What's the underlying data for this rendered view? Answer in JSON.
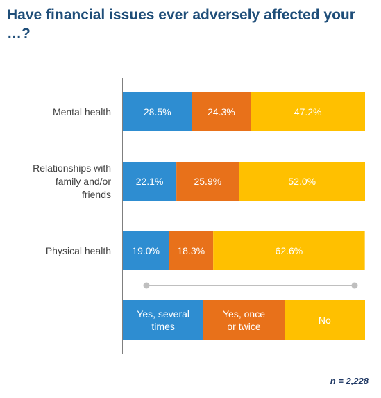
{
  "title": "Have financial issues ever adversely affected your …?",
  "footnote": "n = 2,228",
  "chart_data": {
    "type": "bar",
    "orientation": "horizontal",
    "stacked": true,
    "percent_stacked": true,
    "title": "Have financial issues ever adversely affected your …?",
    "categories": [
      "Mental health",
      "Relationships with family and/or friends",
      "Physical health"
    ],
    "series": [
      {
        "name": "Yes, several times",
        "color": "#2e8dd1",
        "values": [
          28.5,
          22.1,
          19.0
        ],
        "labels": [
          "28.5%",
          "22.1%",
          "19.0%"
        ]
      },
      {
        "name": "Yes, once or twice",
        "color": "#e8711a",
        "values": [
          24.3,
          25.9,
          18.3
        ],
        "labels": [
          "24.3%",
          "25.9%",
          "18.3%"
        ]
      },
      {
        "name": "No",
        "color": "#ffc000",
        "values": [
          47.2,
          52.0,
          62.6
        ],
        "labels": [
          "47.2%",
          "52.0%",
          "62.6%"
        ]
      }
    ],
    "xlim": [
      0,
      100
    ],
    "grid": false,
    "legend_placement": "bottom"
  },
  "legend": [
    {
      "label": "Yes, several\ntimes",
      "color": "#2e8dd1"
    },
    {
      "label": "Yes, once\nor twice",
      "color": "#e8711a"
    },
    {
      "label": "No",
      "color": "#ffc000"
    }
  ],
  "colors": {
    "title": "#1f4e79",
    "axis": "#7f7f7f",
    "label_text": "#404040",
    "slider": "#bfbfbf"
  }
}
